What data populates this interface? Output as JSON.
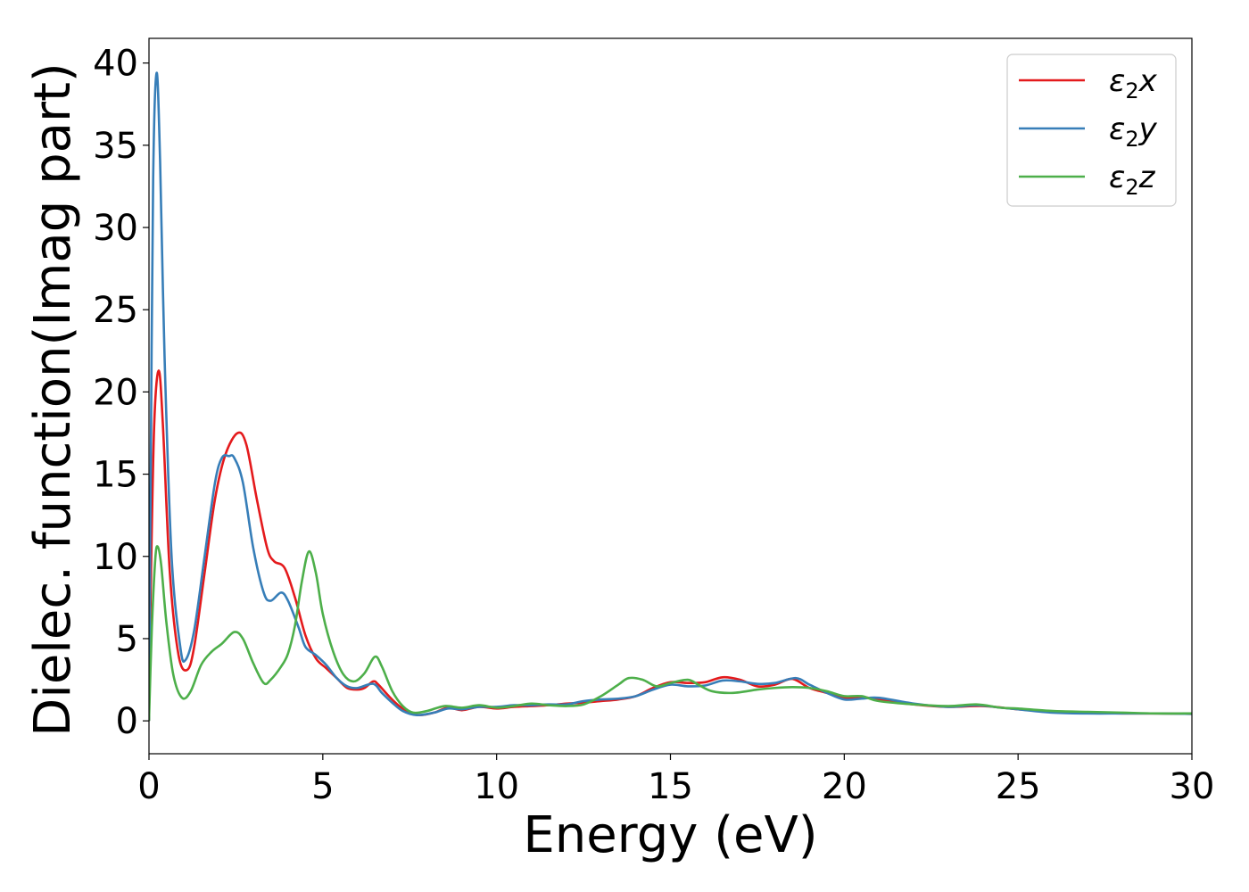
{
  "chart_data": {
    "type": "line",
    "title": "",
    "xlabel": "Energy (eV)",
    "ylabel": "Dielec. function(Imag part)",
    "xlim": [
      0,
      30
    ],
    "ylim": [
      -2,
      41.5
    ],
    "xticks": [
      0,
      5,
      10,
      15,
      20,
      25,
      30
    ],
    "yticks": [
      0,
      5,
      10,
      15,
      20,
      25,
      30,
      35,
      40
    ],
    "grid": false,
    "legend_position": "top-right",
    "series": [
      {
        "name": "ε₂x",
        "label_base": "ε",
        "label_sub": "2",
        "label_var": "x",
        "color": "#e41a1c",
        "points": [
          [
            0,
            0
          ],
          [
            0.05,
            8
          ],
          [
            0.15,
            18
          ],
          [
            0.28,
            21.3
          ],
          [
            0.4,
            18
          ],
          [
            0.6,
            9
          ],
          [
            0.85,
            4
          ],
          [
            1.1,
            3.1
          ],
          [
            1.3,
            4.5
          ],
          [
            1.6,
            9
          ],
          [
            1.9,
            13.5
          ],
          [
            2.2,
            16.2
          ],
          [
            2.55,
            17.5
          ],
          [
            2.8,
            16.8
          ],
          [
            3.1,
            13.5
          ],
          [
            3.4,
            10.5
          ],
          [
            3.6,
            9.7
          ],
          [
            3.9,
            9.3
          ],
          [
            4.2,
            7.5
          ],
          [
            4.5,
            5.2
          ],
          [
            4.8,
            3.8
          ],
          [
            5.1,
            3.2
          ],
          [
            5.4,
            2.6
          ],
          [
            5.7,
            2.0
          ],
          [
            6.0,
            1.9
          ],
          [
            6.2,
            2.0
          ],
          [
            6.45,
            2.4
          ],
          [
            6.6,
            2.2
          ],
          [
            6.9,
            1.5
          ],
          [
            7.2,
            0.9
          ],
          [
            7.5,
            0.5
          ],
          [
            7.8,
            0.35
          ],
          [
            8.2,
            0.5
          ],
          [
            8.6,
            0.8
          ],
          [
            9.0,
            0.65
          ],
          [
            9.5,
            0.85
          ],
          [
            10.0,
            0.75
          ],
          [
            10.5,
            0.85
          ],
          [
            11.0,
            0.9
          ],
          [
            11.5,
            0.95
          ],
          [
            12.0,
            1.05
          ],
          [
            12.5,
            1.1
          ],
          [
            13.0,
            1.2
          ],
          [
            13.5,
            1.3
          ],
          [
            14.0,
            1.5
          ],
          [
            14.5,
            2.0
          ],
          [
            15.0,
            2.35
          ],
          [
            15.5,
            2.3
          ],
          [
            16.0,
            2.35
          ],
          [
            16.5,
            2.65
          ],
          [
            17.0,
            2.5
          ],
          [
            17.5,
            2.1
          ],
          [
            18.0,
            2.2
          ],
          [
            18.5,
            2.55
          ],
          [
            19.0,
            2.0
          ],
          [
            19.5,
            1.7
          ],
          [
            20.0,
            1.4
          ],
          [
            20.5,
            1.45
          ],
          [
            21.0,
            1.3
          ],
          [
            22.0,
            1.0
          ],
          [
            23.0,
            0.85
          ],
          [
            24.0,
            0.9
          ],
          [
            25.0,
            0.7
          ],
          [
            26.0,
            0.55
          ],
          [
            27.0,
            0.5
          ],
          [
            28.0,
            0.45
          ],
          [
            29.0,
            0.45
          ],
          [
            30.0,
            0.42
          ]
        ]
      },
      {
        "name": "ε₂y",
        "label_base": "ε",
        "label_sub": "2",
        "label_var": "y",
        "color": "#377eb8",
        "points": [
          [
            0,
            0
          ],
          [
            0.05,
            15
          ],
          [
            0.12,
            33
          ],
          [
            0.22,
            39.4
          ],
          [
            0.32,
            34
          ],
          [
            0.45,
            22
          ],
          [
            0.65,
            10
          ],
          [
            0.9,
            4.5
          ],
          [
            1.05,
            3.7
          ],
          [
            1.3,
            5.5
          ],
          [
            1.6,
            10
          ],
          [
            1.9,
            14.5
          ],
          [
            2.1,
            16.0
          ],
          [
            2.3,
            16.1
          ],
          [
            2.45,
            16.0
          ],
          [
            2.7,
            14.5
          ],
          [
            3.0,
            10.5
          ],
          [
            3.3,
            7.8
          ],
          [
            3.5,
            7.3
          ],
          [
            3.8,
            7.8
          ],
          [
            4.0,
            7.3
          ],
          [
            4.3,
            5.7
          ],
          [
            4.5,
            4.5
          ],
          [
            4.8,
            4.0
          ],
          [
            5.1,
            3.4
          ],
          [
            5.4,
            2.6
          ],
          [
            5.7,
            2.1
          ],
          [
            6.0,
            2.0
          ],
          [
            6.45,
            2.25
          ],
          [
            6.7,
            1.7
          ],
          [
            7.0,
            1.1
          ],
          [
            7.3,
            0.6
          ],
          [
            7.7,
            0.35
          ],
          [
            8.2,
            0.5
          ],
          [
            8.6,
            0.75
          ],
          [
            9.0,
            0.7
          ],
          [
            9.5,
            0.85
          ],
          [
            10.0,
            0.85
          ],
          [
            10.5,
            0.95
          ],
          [
            11.0,
            0.95
          ],
          [
            11.5,
            1.0
          ],
          [
            12.0,
            1.0
          ],
          [
            12.5,
            1.2
          ],
          [
            13.0,
            1.3
          ],
          [
            13.5,
            1.35
          ],
          [
            14.0,
            1.5
          ],
          [
            14.5,
            1.9
          ],
          [
            15.0,
            2.2
          ],
          [
            15.5,
            2.1
          ],
          [
            16.0,
            2.15
          ],
          [
            16.5,
            2.45
          ],
          [
            17.0,
            2.4
          ],
          [
            17.5,
            2.25
          ],
          [
            18.0,
            2.3
          ],
          [
            18.6,
            2.6
          ],
          [
            19.0,
            2.2
          ],
          [
            19.5,
            1.7
          ],
          [
            20.0,
            1.3
          ],
          [
            20.5,
            1.35
          ],
          [
            21.0,
            1.4
          ],
          [
            22.0,
            1.05
          ],
          [
            23.0,
            0.85
          ],
          [
            23.8,
            0.95
          ],
          [
            24.5,
            0.8
          ],
          [
            25.0,
            0.7
          ],
          [
            26.0,
            0.5
          ],
          [
            27.0,
            0.45
          ],
          [
            28.0,
            0.45
          ],
          [
            29.0,
            0.45
          ],
          [
            30.0,
            0.42
          ]
        ]
      },
      {
        "name": "ε₂z",
        "label_base": "ε",
        "label_sub": "2",
        "label_var": "z",
        "color": "#4daf4a",
        "points": [
          [
            0,
            0
          ],
          [
            0.08,
            5.5
          ],
          [
            0.18,
            9.8
          ],
          [
            0.25,
            10.6
          ],
          [
            0.35,
            9.5
          ],
          [
            0.5,
            6
          ],
          [
            0.7,
            2.8
          ],
          [
            0.95,
            1.4
          ],
          [
            1.2,
            1.8
          ],
          [
            1.5,
            3.4
          ],
          [
            1.8,
            4.2
          ],
          [
            2.1,
            4.7
          ],
          [
            2.45,
            5.4
          ],
          [
            2.7,
            5.0
          ],
          [
            3.0,
            3.5
          ],
          [
            3.3,
            2.3
          ],
          [
            3.5,
            2.5
          ],
          [
            3.8,
            3.3
          ],
          [
            4.0,
            4.1
          ],
          [
            4.2,
            5.8
          ],
          [
            4.4,
            8.5
          ],
          [
            4.6,
            10.3
          ],
          [
            4.8,
            9.0
          ],
          [
            5.0,
            6.5
          ],
          [
            5.3,
            4.2
          ],
          [
            5.6,
            2.8
          ],
          [
            5.9,
            2.4
          ],
          [
            6.2,
            2.9
          ],
          [
            6.5,
            3.9
          ],
          [
            6.7,
            3.3
          ],
          [
            7.0,
            1.8
          ],
          [
            7.3,
            0.9
          ],
          [
            7.6,
            0.5
          ],
          [
            8.0,
            0.6
          ],
          [
            8.5,
            0.9
          ],
          [
            9.0,
            0.8
          ],
          [
            9.5,
            0.95
          ],
          [
            10.0,
            0.8
          ],
          [
            10.5,
            0.9
          ],
          [
            11.0,
            1.05
          ],
          [
            11.5,
            0.95
          ],
          [
            12.0,
            0.9
          ],
          [
            12.5,
            1.0
          ],
          [
            13.0,
            1.5
          ],
          [
            13.5,
            2.2
          ],
          [
            13.8,
            2.6
          ],
          [
            14.2,
            2.5
          ],
          [
            14.6,
            2.1
          ],
          [
            15.0,
            2.3
          ],
          [
            15.5,
            2.5
          ],
          [
            15.8,
            2.2
          ],
          [
            16.2,
            1.8
          ],
          [
            16.8,
            1.7
          ],
          [
            17.5,
            1.9
          ],
          [
            18.0,
            2.0
          ],
          [
            18.5,
            2.05
          ],
          [
            19.0,
            2.0
          ],
          [
            19.5,
            1.8
          ],
          [
            20.0,
            1.5
          ],
          [
            20.5,
            1.5
          ],
          [
            21.0,
            1.2
          ],
          [
            22.0,
            1.0
          ],
          [
            23.0,
            0.9
          ],
          [
            23.8,
            1.0
          ],
          [
            24.5,
            0.8
          ],
          [
            25.0,
            0.75
          ],
          [
            26.0,
            0.6
          ],
          [
            27.0,
            0.55
          ],
          [
            28.0,
            0.5
          ],
          [
            29.0,
            0.45
          ],
          [
            30.0,
            0.45
          ]
        ]
      }
    ]
  }
}
